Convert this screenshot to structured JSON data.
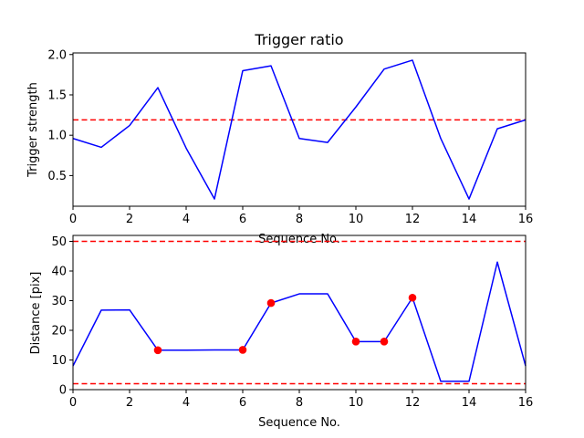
{
  "chart_data": [
    {
      "type": "line",
      "title": "Trigger ratio",
      "xlabel": "Sequence No.",
      "ylabel": "Trigger strength",
      "xlim": [
        0,
        16
      ],
      "ylim": [
        0.12,
        2.02
      ],
      "xticks": [
        "0",
        "2",
        "4",
        "6",
        "8",
        "10",
        "12",
        "14",
        "16"
      ],
      "yticks": [
        "0.5",
        "1.0",
        "1.5",
        "2.0"
      ],
      "grid": false,
      "series": [
        {
          "color": "#0000ff",
          "x": [
            0,
            1,
            2,
            3,
            4,
            5,
            6,
            7,
            8,
            9,
            10,
            11,
            12,
            13,
            14,
            15,
            16
          ],
          "values": [
            0.96,
            0.85,
            1.12,
            1.59,
            0.84,
            0.21,
            1.8,
            1.86,
            0.96,
            0.91,
            1.35,
            1.82,
            1.93,
            0.96,
            0.21,
            1.08,
            1.19
          ]
        }
      ],
      "reference_lines": [
        {
          "y": 1.19,
          "color": "#ff0000",
          "style": "dashed"
        }
      ]
    },
    {
      "type": "line",
      "title": "",
      "xlabel": "Sequence No.",
      "ylabel": "Distance [pix]",
      "xlim": [
        0,
        16
      ],
      "ylim": [
        0,
        52
      ],
      "xticks": [
        "0",
        "2",
        "4",
        "6",
        "8",
        "10",
        "12",
        "14",
        "16"
      ],
      "yticks": [
        "0",
        "10",
        "20",
        "30",
        "40",
        "50"
      ],
      "grid": false,
      "series": [
        {
          "color": "#0000ff",
          "x": [
            0,
            1,
            2,
            3,
            4,
            5,
            6,
            7,
            8,
            9,
            10,
            11,
            12,
            13,
            14,
            15,
            16
          ],
          "values": [
            8,
            26.8,
            26.9,
            13.3,
            13.3,
            13.4,
            13.4,
            29.2,
            32.3,
            32.3,
            16.2,
            16.2,
            31.0,
            2.8,
            2.8,
            43.0,
            8
          ]
        }
      ],
      "markers": {
        "color": "#ff0000",
        "x": [
          3,
          6,
          7,
          10,
          11,
          12
        ],
        "y": [
          13.3,
          13.4,
          29.2,
          16.2,
          16.2,
          31.0
        ]
      },
      "reference_lines": [
        {
          "y": 50,
          "color": "#ff0000",
          "style": "dashed"
        },
        {
          "y": 2,
          "color": "#ff0000",
          "style": "dashed"
        }
      ]
    }
  ]
}
